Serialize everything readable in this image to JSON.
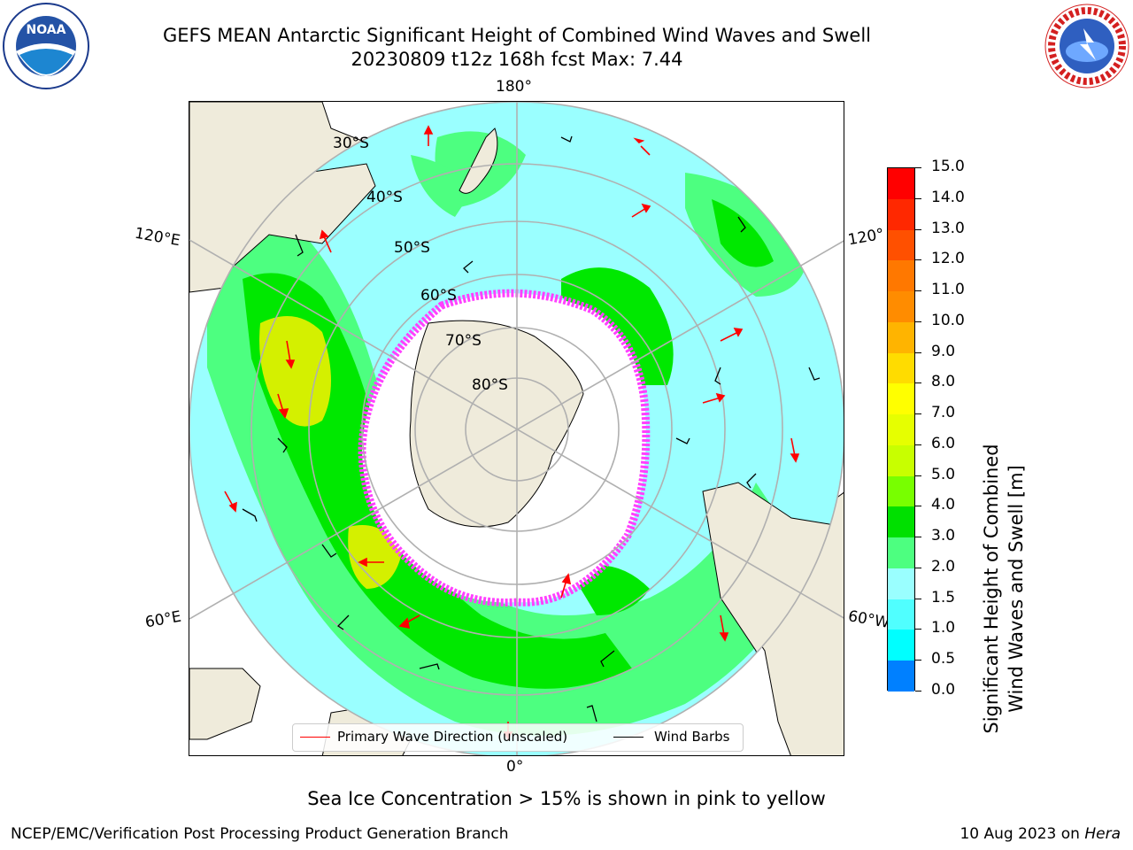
{
  "header": {
    "title_line1": "GEFS MEAN Antarctic Significant Height of Combined Wind Waves and Swell",
    "title_line2": "20230809 t12z 168h fcst   Max: 7.44"
  },
  "logos": {
    "left": {
      "icon": "noaa-logo",
      "text": "NOAA"
    },
    "right": {
      "icon": "national-weather-service-logo",
      "text": "NATIONAL WEATHER SERVICE"
    }
  },
  "map": {
    "projection": "south-polar-stereographic",
    "longitude_labels": {
      "top": "180°",
      "bottom": "0°",
      "left_upper": "120°E",
      "left_lower": "60°E",
      "right_upper": "120°",
      "right_lower": "60°W"
    },
    "latitude_labels": [
      "30°S",
      "40°S",
      "50°S",
      "60°S",
      "70°S",
      "80°S"
    ],
    "colors": {
      "land": "#efebdb",
      "ocean_low": "#9affff",
      "ocean_mid": "#4dff80",
      "ocean_high": "#00e800",
      "peak": "#d4f000",
      "ice_edge": "#ff40ff",
      "arrow": "#ff0000",
      "barb": "#000000",
      "grid": "#b0b0b0"
    }
  },
  "colorbar": {
    "label_line1": "Significant Height of Combined",
    "label_line2": "Wind Waves and Swell [m]",
    "ticks": [
      "15.0",
      "14.0",
      "13.0",
      "12.0",
      "11.0",
      "10.0",
      "9.0",
      "8.0",
      "7.0",
      "6.0",
      "5.0",
      "4.0",
      "3.0",
      "2.0",
      "1.5",
      "1.0",
      "0.5",
      "0.0"
    ],
    "colors_top_to_bottom": [
      "#ff0000",
      "#ff2800",
      "#ff5000",
      "#ff7800",
      "#ff8c00",
      "#ffb400",
      "#ffdc00",
      "#ffff00",
      "#e6ff00",
      "#c8ff00",
      "#78ff00",
      "#00e000",
      "#4dff80",
      "#9affff",
      "#50ffff",
      "#00ffff",
      "#0080ff",
      "#0000ff"
    ]
  },
  "legend": {
    "primary_wave_label": "Primary Wave Direction (unscaled)",
    "wind_barbs_label": "Wind Barbs"
  },
  "footer": {
    "sea_ice_note": "Sea Ice Concentration > 15% is shown in pink to yellow",
    "branch": "NCEP/EMC/Verification Post Processing Product Generation Branch",
    "date_prefix": "10 Aug 2023 on ",
    "machine": "Hera"
  }
}
